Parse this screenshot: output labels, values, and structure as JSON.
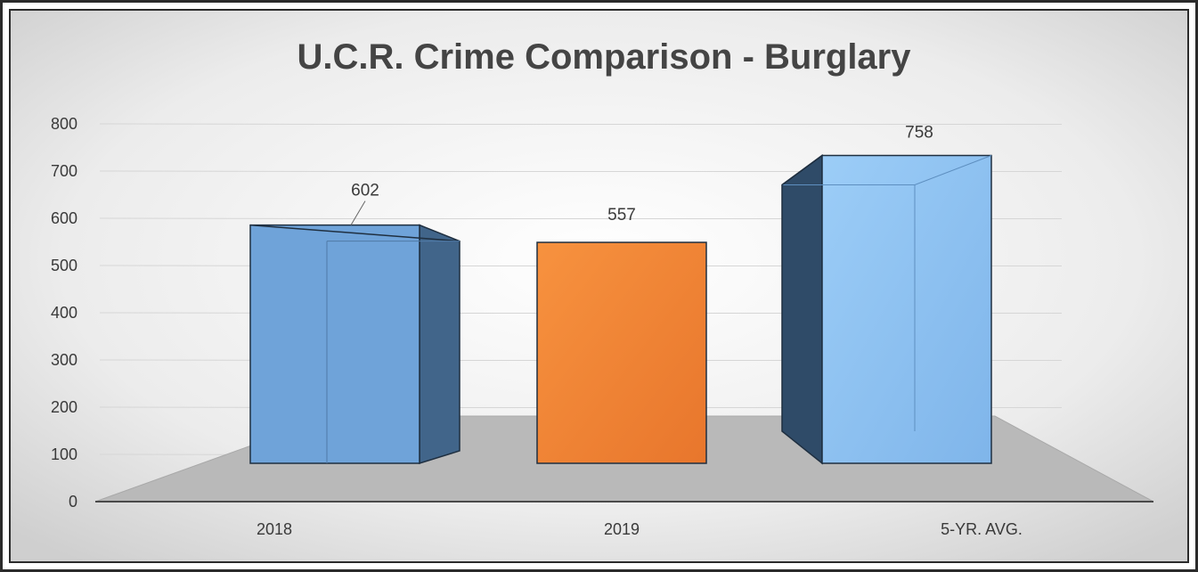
{
  "chart_data": {
    "type": "bar",
    "title": "U.C.R. Crime Comparison - Burglary",
    "categories": [
      "2018",
      "2019",
      "5-YR. AVG."
    ],
    "values": [
      602,
      557,
      758
    ],
    "data_labels": [
      "602",
      "557",
      "758"
    ],
    "ylim": [
      0,
      800
    ],
    "yticks": [
      "0",
      "100",
      "200",
      "300",
      "400",
      "500",
      "600",
      "700",
      "800"
    ],
    "grid": true,
    "legend": "none",
    "colors": {
      "2018": "#6fa3d9",
      "2019": "#f08838",
      "5-YR. AVG.": "#8ec3f2"
    }
  }
}
